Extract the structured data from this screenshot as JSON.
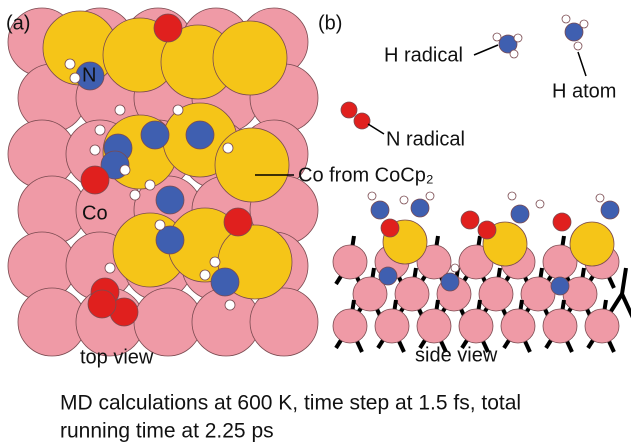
{
  "panel_a": {
    "label": "(a)",
    "atom_labels": [
      "N",
      "Co"
    ],
    "annotation": "Co from CoCp₂",
    "caption": "top view"
  },
  "panel_b": {
    "label": "(b)",
    "annotations": [
      "H radical",
      "H atom",
      "N radical"
    ],
    "caption": "side view"
  },
  "caption": {
    "lines": [
      "MD calculations at 600 K, time step at 1.5 fs, total",
      "running time at 2.25 ps"
    ]
  }
}
